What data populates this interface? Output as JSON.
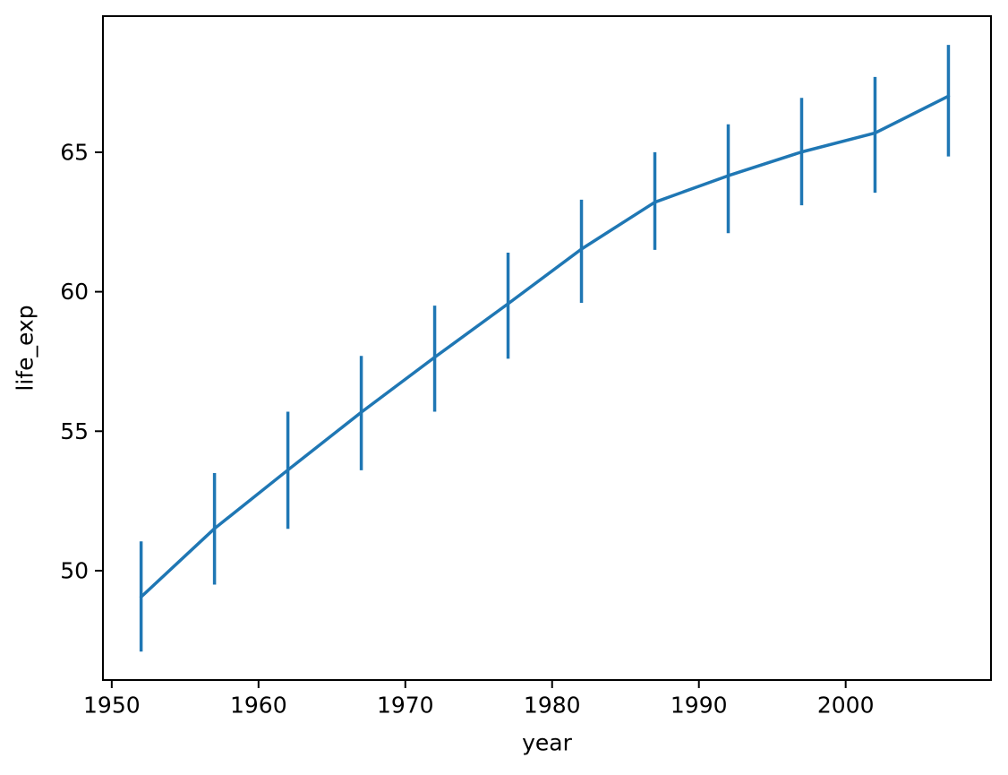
{
  "figure": {
    "background": "#ffffff"
  },
  "chart_data": {
    "type": "line",
    "title": "",
    "xlabel": "year",
    "ylabel": "life_exp",
    "x": [
      1952,
      1957,
      1962,
      1967,
      1972,
      1977,
      1982,
      1987,
      1992,
      1997,
      2002,
      2007
    ],
    "series": [
      {
        "name": "life_exp",
        "values": [
          49.06,
          51.51,
          53.61,
          55.68,
          57.65,
          59.57,
          61.53,
          63.21,
          64.16,
          65.01,
          65.69,
          67.01
        ],
        "err_low": [
          47.1,
          49.5,
          51.5,
          53.6,
          55.7,
          57.6,
          59.6,
          61.5,
          62.1,
          63.1,
          63.55,
          64.85
        ],
        "err_high": [
          51.05,
          53.5,
          55.7,
          57.7,
          59.5,
          61.4,
          63.3,
          65.0,
          66.0,
          66.95,
          67.7,
          68.85
        ]
      }
    ],
    "error_style": "bars",
    "xticks": [
      1950,
      1960,
      1970,
      1980,
      1990,
      2000
    ],
    "yticks": [
      50,
      55,
      60,
      65
    ],
    "xlim": [
      1949.4,
      2009.9
    ],
    "ylim": [
      46.08,
      69.88
    ],
    "grid": false,
    "legend_position": "none",
    "line_color": "#1f77b4",
    "axis_color": "#000000",
    "background_color": "#ffffff"
  }
}
